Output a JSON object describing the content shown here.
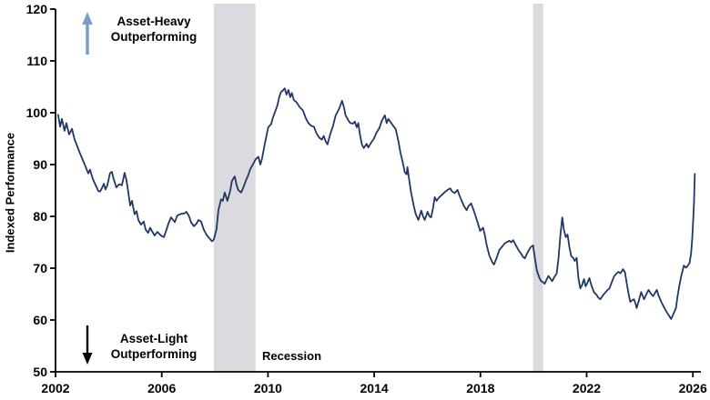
{
  "chart_data": {
    "type": "line",
    "title": "",
    "xlabel": "",
    "ylabel": "Indexed Performance",
    "xlim": [
      2002,
      2026.3
    ],
    "ylim": [
      50,
      120
    ],
    "x_ticks": [
      2002,
      2006,
      2010,
      2014,
      2018,
      2022,
      2026
    ],
    "y_ticks": [
      50,
      60,
      70,
      80,
      90,
      100,
      110,
      120
    ],
    "grid": false,
    "legend": "none",
    "line_color": "#1F3864",
    "band_color": "#DBDBDF",
    "axis_color": "#000000",
    "recession_bands": [
      [
        2007.96,
        2009.53
      ],
      [
        2019.98,
        2020.36
      ]
    ],
    "annotations": {
      "asset_heavy": {
        "line1": "Asset-Heavy",
        "line2": "Outperforming",
        "arrow": "up",
        "arrow_color": "#7E9DC9"
      },
      "asset_light": {
        "line1": "Asset-Light",
        "line2": "Outperforming",
        "arrow": "down",
        "arrow_color": "#000000"
      },
      "recession_label": "Recession"
    },
    "series": [
      {
        "points": [
          [
            2002.1,
            99.6
          ],
          [
            2002.17,
            97.3
          ],
          [
            2002.24,
            98.8
          ],
          [
            2002.34,
            96.5
          ],
          [
            2002.41,
            98.0
          ],
          [
            2002.51,
            95.8
          ],
          [
            2002.62,
            96.9
          ],
          [
            2002.72,
            94.8
          ],
          [
            2002.82,
            93.5
          ],
          [
            2002.92,
            92.2
          ],
          [
            2003.03,
            90.8
          ],
          [
            2003.13,
            89.6
          ],
          [
            2003.23,
            88.3
          ],
          [
            2003.3,
            89.0
          ],
          [
            2003.4,
            87.3
          ],
          [
            2003.51,
            86.0
          ],
          [
            2003.61,
            84.9
          ],
          [
            2003.68,
            84.8
          ],
          [
            2003.75,
            85.5
          ],
          [
            2003.82,
            86.3
          ],
          [
            2003.88,
            85.2
          ],
          [
            2003.95,
            86.0
          ],
          [
            2004.05,
            88.3
          ],
          [
            2004.12,
            88.6
          ],
          [
            2004.19,
            87.2
          ],
          [
            2004.29,
            85.6
          ],
          [
            2004.4,
            86.2
          ],
          [
            2004.5,
            86.0
          ],
          [
            2004.6,
            88.4
          ],
          [
            2004.67,
            87.0
          ],
          [
            2004.74,
            84.7
          ],
          [
            2004.81,
            82.1
          ],
          [
            2004.88,
            83.0
          ],
          [
            2004.98,
            80.4
          ],
          [
            2005.05,
            81.0
          ],
          [
            2005.12,
            79.3
          ],
          [
            2005.22,
            78.4
          ],
          [
            2005.32,
            79.0
          ],
          [
            2005.39,
            77.5
          ],
          [
            2005.49,
            76.8
          ],
          [
            2005.56,
            77.8
          ],
          [
            2005.63,
            77.2
          ],
          [
            2005.73,
            76.3
          ],
          [
            2005.84,
            77.0
          ],
          [
            2005.97,
            76.3
          ],
          [
            2006.08,
            76.0
          ],
          [
            2006.18,
            77.5
          ],
          [
            2006.25,
            78.6
          ],
          [
            2006.35,
            79.8
          ],
          [
            2006.49,
            78.9
          ],
          [
            2006.59,
            80.2
          ],
          [
            2006.73,
            80.5
          ],
          [
            2006.86,
            80.6
          ],
          [
            2006.93,
            80.9
          ],
          [
            2007.03,
            80.0
          ],
          [
            2007.1,
            78.9
          ],
          [
            2007.21,
            78.1
          ],
          [
            2007.31,
            78.6
          ],
          [
            2007.38,
            79.3
          ],
          [
            2007.48,
            79.0
          ],
          [
            2007.58,
            77.5
          ],
          [
            2007.68,
            76.5
          ],
          [
            2007.79,
            75.8
          ],
          [
            2007.89,
            75.2
          ],
          [
            2007.96,
            75.5
          ],
          [
            2008.06,
            77.5
          ],
          [
            2008.13,
            81.1
          ],
          [
            2008.23,
            83.3
          ],
          [
            2008.3,
            83.0
          ],
          [
            2008.37,
            84.6
          ],
          [
            2008.47,
            83.0
          ],
          [
            2008.58,
            85.0
          ],
          [
            2008.64,
            86.8
          ],
          [
            2008.75,
            87.7
          ],
          [
            2008.82,
            86.0
          ],
          [
            2008.88,
            85.1
          ],
          [
            2008.99,
            84.6
          ],
          [
            2009.09,
            85.8
          ],
          [
            2009.16,
            86.8
          ],
          [
            2009.26,
            88.0
          ],
          [
            2009.33,
            89.1
          ],
          [
            2009.43,
            90.0
          ],
          [
            2009.53,
            91.0
          ],
          [
            2009.64,
            91.5
          ],
          [
            2009.71,
            90.0
          ],
          [
            2009.77,
            91.0
          ],
          [
            2009.88,
            94.0
          ],
          [
            2010.01,
            97.2
          ],
          [
            2010.12,
            97.8
          ],
          [
            2010.18,
            99.0
          ],
          [
            2010.29,
            100.5
          ],
          [
            2010.36,
            101.5
          ],
          [
            2010.42,
            103.0
          ],
          [
            2010.49,
            104.0
          ],
          [
            2010.56,
            104.3
          ],
          [
            2010.63,
            104.7
          ],
          [
            2010.7,
            103.5
          ],
          [
            2010.77,
            104.4
          ],
          [
            2010.84,
            103.0
          ],
          [
            2010.9,
            103.8
          ],
          [
            2010.97,
            102.5
          ],
          [
            2011.08,
            102.0
          ],
          [
            2011.18,
            101.2
          ],
          [
            2011.32,
            100.4
          ],
          [
            2011.42,
            99.0
          ],
          [
            2011.52,
            98.0
          ],
          [
            2011.62,
            97.5
          ],
          [
            2011.73,
            97.3
          ],
          [
            2011.83,
            96.0
          ],
          [
            2011.93,
            95.2
          ],
          [
            2012.03,
            94.8
          ],
          [
            2012.1,
            95.5
          ],
          [
            2012.17,
            94.5
          ],
          [
            2012.24,
            93.9
          ],
          [
            2012.34,
            95.8
          ],
          [
            2012.45,
            97.5
          ],
          [
            2012.55,
            99.5
          ],
          [
            2012.62,
            100.2
          ],
          [
            2012.68,
            100.8
          ],
          [
            2012.79,
            102.3
          ],
          [
            2012.86,
            101.0
          ],
          [
            2012.92,
            99.5
          ],
          [
            2013.03,
            98.5
          ],
          [
            2013.1,
            98.0
          ],
          [
            2013.2,
            97.9
          ],
          [
            2013.27,
            98.3
          ],
          [
            2013.34,
            97.2
          ],
          [
            2013.4,
            98.0
          ],
          [
            2013.47,
            95.5
          ],
          [
            2013.54,
            93.8
          ],
          [
            2013.61,
            93.2
          ],
          [
            2013.71,
            94.0
          ],
          [
            2013.78,
            93.3
          ],
          [
            2013.88,
            94.2
          ],
          [
            2013.99,
            95.0
          ],
          [
            2014.09,
            96.2
          ],
          [
            2014.19,
            97.0
          ],
          [
            2014.29,
            98.5
          ],
          [
            2014.4,
            99.5
          ],
          [
            2014.47,
            98.0
          ],
          [
            2014.53,
            98.8
          ],
          [
            2014.64,
            98.0
          ],
          [
            2014.74,
            97.3
          ],
          [
            2014.81,
            96.8
          ],
          [
            2014.91,
            94.5
          ],
          [
            2014.98,
            92.5
          ],
          [
            2015.08,
            90.3
          ],
          [
            2015.15,
            88.5
          ],
          [
            2015.22,
            88.1
          ],
          [
            2015.25,
            89.5
          ],
          [
            2015.32,
            87.0
          ],
          [
            2015.39,
            84.5
          ],
          [
            2015.49,
            82.0
          ],
          [
            2015.56,
            80.5
          ],
          [
            2015.66,
            79.3
          ],
          [
            2015.77,
            81.1
          ],
          [
            2015.84,
            80.0
          ],
          [
            2015.9,
            79.3
          ],
          [
            2016.01,
            80.9
          ],
          [
            2016.08,
            80.0
          ],
          [
            2016.14,
            79.8
          ],
          [
            2016.21,
            81.5
          ],
          [
            2016.28,
            83.7
          ],
          [
            2016.35,
            83.0
          ],
          [
            2016.42,
            83.5
          ],
          [
            2016.52,
            84.0
          ],
          [
            2016.62,
            84.5
          ],
          [
            2016.69,
            84.8
          ],
          [
            2016.76,
            85.1
          ],
          [
            2016.86,
            85.4
          ],
          [
            2016.93,
            84.8
          ],
          [
            2017.03,
            84.5
          ],
          [
            2017.14,
            85.1
          ],
          [
            2017.21,
            84.0
          ],
          [
            2017.31,
            82.8
          ],
          [
            2017.38,
            82.0
          ],
          [
            2017.48,
            81.2
          ],
          [
            2017.55,
            82.0
          ],
          [
            2017.65,
            82.5
          ],
          [
            2017.72,
            81.5
          ],
          [
            2017.82,
            80.0
          ],
          [
            2017.89,
            78.9
          ],
          [
            2017.99,
            77.2
          ],
          [
            2018.1,
            77.8
          ],
          [
            2018.16,
            76.5
          ],
          [
            2018.23,
            74.6
          ],
          [
            2018.33,
            72.5
          ],
          [
            2018.44,
            71.2
          ],
          [
            2018.51,
            70.7
          ],
          [
            2018.61,
            72.0
          ],
          [
            2018.71,
            73.5
          ],
          [
            2018.82,
            74.2
          ],
          [
            2018.92,
            74.8
          ],
          [
            2019.02,
            75.1
          ],
          [
            2019.09,
            75.3
          ],
          [
            2019.16,
            75.0
          ],
          [
            2019.23,
            75.4
          ],
          [
            2019.33,
            74.5
          ],
          [
            2019.43,
            73.5
          ],
          [
            2019.53,
            72.8
          ],
          [
            2019.6,
            72.2
          ],
          [
            2019.67,
            71.9
          ],
          [
            2019.77,
            73.0
          ],
          [
            2019.88,
            74.0
          ],
          [
            2019.98,
            74.4
          ],
          [
            2020.05,
            72.0
          ],
          [
            2020.12,
            69.6
          ],
          [
            2020.22,
            68.1
          ],
          [
            2020.29,
            67.5
          ],
          [
            2020.36,
            67.3
          ],
          [
            2020.42,
            67.0
          ],
          [
            2020.49,
            67.8
          ],
          [
            2020.56,
            68.5
          ],
          [
            2020.63,
            68.0
          ],
          [
            2020.7,
            67.5
          ],
          [
            2020.77,
            68.2
          ],
          [
            2020.87,
            69.0
          ],
          [
            2020.94,
            72.0
          ],
          [
            2021.01,
            76.5
          ],
          [
            2021.08,
            79.8
          ],
          [
            2021.14,
            77.5
          ],
          [
            2021.21,
            76.0
          ],
          [
            2021.28,
            76.5
          ],
          [
            2021.35,
            74.0
          ],
          [
            2021.42,
            72.3
          ],
          [
            2021.49,
            72.0
          ],
          [
            2021.55,
            71.4
          ],
          [
            2021.62,
            72.0
          ],
          [
            2021.69,
            68.0
          ],
          [
            2021.76,
            66.1
          ],
          [
            2021.83,
            66.8
          ],
          [
            2021.9,
            67.9
          ],
          [
            2021.96,
            66.5
          ],
          [
            2022.03,
            67.2
          ],
          [
            2022.1,
            68.1
          ],
          [
            2022.17,
            66.8
          ],
          [
            2022.27,
            65.4
          ],
          [
            2022.38,
            64.8
          ],
          [
            2022.44,
            64.3
          ],
          [
            2022.51,
            64.0
          ],
          [
            2022.62,
            64.8
          ],
          [
            2022.72,
            65.4
          ],
          [
            2022.79,
            65.8
          ],
          [
            2022.86,
            66.1
          ],
          [
            2022.96,
            67.5
          ],
          [
            2023.03,
            68.4
          ],
          [
            2023.13,
            69.0
          ],
          [
            2023.2,
            69.3
          ],
          [
            2023.27,
            69.0
          ],
          [
            2023.37,
            69.8
          ],
          [
            2023.44,
            69.2
          ],
          [
            2023.51,
            67.0
          ],
          [
            2023.58,
            65.0
          ],
          [
            2023.64,
            63.5
          ],
          [
            2023.71,
            63.8
          ],
          [
            2023.78,
            64.0
          ],
          [
            2023.85,
            63.0
          ],
          [
            2023.88,
            62.3
          ],
          [
            2023.95,
            63.5
          ],
          [
            2024.05,
            65.4
          ],
          [
            2024.12,
            64.5
          ],
          [
            2024.16,
            64.0
          ],
          [
            2024.23,
            64.8
          ],
          [
            2024.33,
            65.8
          ],
          [
            2024.4,
            65.2
          ],
          [
            2024.5,
            64.6
          ],
          [
            2024.57,
            65.2
          ],
          [
            2024.64,
            65.8
          ],
          [
            2024.7,
            64.8
          ],
          [
            2024.81,
            63.5
          ],
          [
            2024.91,
            62.5
          ],
          [
            2024.98,
            61.8
          ],
          [
            2025.08,
            61.0
          ],
          [
            2025.18,
            60.2
          ],
          [
            2025.25,
            61.0
          ],
          [
            2025.36,
            62.3
          ],
          [
            2025.42,
            64.5
          ],
          [
            2025.49,
            66.7
          ],
          [
            2025.56,
            68.5
          ],
          [
            2025.6,
            69.3
          ],
          [
            2025.66,
            70.5
          ],
          [
            2025.73,
            70.1
          ],
          [
            2025.8,
            70.4
          ],
          [
            2025.87,
            71.0
          ],
          [
            2025.93,
            72.8
          ],
          [
            2025.97,
            75.5
          ],
          [
            2026.0,
            78.1
          ],
          [
            2026.04,
            82.5
          ],
          [
            2026.07,
            88.2
          ]
        ]
      }
    ]
  }
}
